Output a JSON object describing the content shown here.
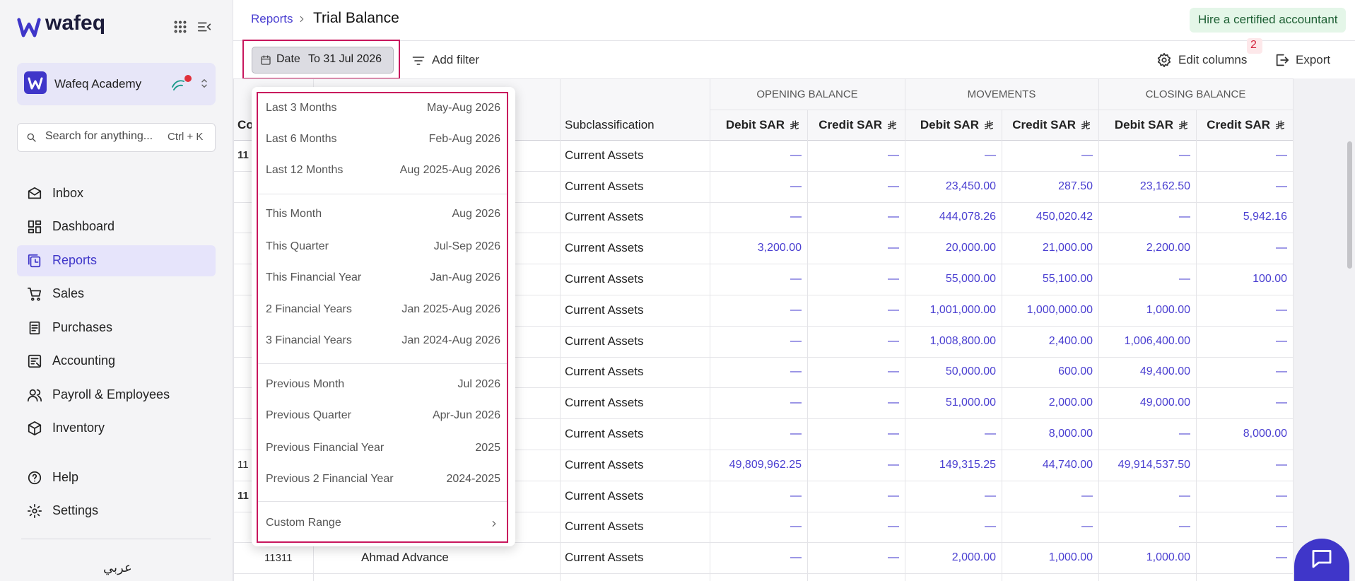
{
  "sidebar": {
    "brand": "wafeq",
    "org": "Wafeq Academy",
    "search_placeholder": "Search for anything...",
    "search_shortcut": "Ctrl + K",
    "menu": [
      "Inbox",
      "Dashboard",
      "Reports",
      "Sales",
      "Purchases",
      "Accounting",
      "Payroll & Employees",
      "Inventory"
    ],
    "active_index": 2,
    "bottom_menu": [
      "Help",
      "Settings"
    ],
    "language": "عربي"
  },
  "header": {
    "breadcrumb": "Reports",
    "title": "Trial Balance",
    "cta": "Hire a certified accountant"
  },
  "toolbar": {
    "date_label": "Date",
    "date_value": "To 31 Jul 2026",
    "add_filter": "Add filter",
    "edit_columns": "Edit columns",
    "edit_columns_badge": "2",
    "export": "Export"
  },
  "date_menu": {
    "groups": [
      [
        {
          "label": "Last 3 Months",
          "range": "May-Aug 2026"
        },
        {
          "label": "Last 6 Months",
          "range": "Feb-Aug 2026"
        },
        {
          "label": "Last 12 Months",
          "range": "Aug 2025-Aug 2026"
        }
      ],
      [
        {
          "label": "This Month",
          "range": "Aug 2026"
        },
        {
          "label": "This Quarter",
          "range": "Jul-Sep 2026"
        },
        {
          "label": "This Financial Year",
          "range": "Jan-Aug 2026"
        },
        {
          "label": "2 Financial Years",
          "range": "Jan 2025-Aug 2026"
        },
        {
          "label": "3 Financial Years",
          "range": "Jan 2024-Aug 2026"
        }
      ],
      [
        {
          "label": "Previous Month",
          "range": "Jul 2026"
        },
        {
          "label": "Previous Quarter",
          "range": "Apr-Jun 2026"
        },
        {
          "label": "Previous Financial Year",
          "range": "2025"
        },
        {
          "label": "Previous 2 Financial Year",
          "range": "2024-2025"
        }
      ]
    ],
    "custom": "Custom Range"
  },
  "table": {
    "code_header": "Co",
    "subclass_header": "Subclassification",
    "groups": [
      "OPENING BALANCE",
      "MOVEMENTS",
      "CLOSING BALANCE"
    ],
    "columns": [
      "Debit SAR",
      "Credit SAR",
      "Debit SAR",
      "Credit SAR",
      "Debit SAR",
      "Credit SAR"
    ],
    "rows": [
      {
        "code": "11",
        "bold": true,
        "subclass": "Current Assets",
        "cells": [
          "—",
          "—",
          "—",
          "—",
          "—",
          "—"
        ]
      },
      {
        "subclass": "Current Assets",
        "cells": [
          "—",
          "—",
          "23,450.00",
          "287.50",
          "23,162.50",
          "—"
        ]
      },
      {
        "subclass": "Current Assets",
        "cells": [
          "—",
          "—",
          "444,078.26",
          "450,020.42",
          "—",
          "5,942.16"
        ]
      },
      {
        "subclass": "Current Assets",
        "cells": [
          "3,200.00",
          "—",
          "20,000.00",
          "21,000.00",
          "2,200.00",
          "—"
        ]
      },
      {
        "subclass": "Current Assets",
        "cells": [
          "—",
          "—",
          "55,000.00",
          "55,100.00",
          "—",
          "100.00"
        ]
      },
      {
        "subclass": "Current Assets",
        "cells": [
          "—",
          "—",
          "1,001,000.00",
          "1,000,000.00",
          "1,000.00",
          "—"
        ]
      },
      {
        "subclass": "Current Assets",
        "cells": [
          "—",
          "—",
          "1,008,800.00",
          "2,400.00",
          "1,006,400.00",
          "—"
        ]
      },
      {
        "subclass": "Current Assets",
        "cells": [
          "—",
          "—",
          "50,000.00",
          "600.00",
          "49,400.00",
          "—"
        ]
      },
      {
        "subclass": "Current Assets",
        "cells": [
          "—",
          "—",
          "51,000.00",
          "2,000.00",
          "49,000.00",
          "—"
        ]
      },
      {
        "subclass": "Current Assets",
        "cells": [
          "—",
          "—",
          "—",
          "8,000.00",
          "—",
          "8,000.00"
        ]
      },
      {
        "code": "11",
        "subclass": "Current Assets",
        "cells": [
          "49,809,962.25",
          "—",
          "149,315.25",
          "44,740.00",
          "49,914,537.50",
          "—"
        ]
      },
      {
        "code": "11",
        "bold": true,
        "subclass": "Current Assets",
        "cells": [
          "—",
          "—",
          "—",
          "—",
          "—",
          "—"
        ]
      },
      {
        "subclass": "Current Assets",
        "cells": [
          "—",
          "—",
          "—",
          "—",
          "—",
          "—"
        ]
      },
      {
        "code": "11311",
        "name": "Ahmad Advance",
        "subclass": "Current Assets",
        "cells": [
          "—",
          "—",
          "2,000.00",
          "1,000.00",
          "1,000.00",
          "—"
        ]
      }
    ]
  }
}
